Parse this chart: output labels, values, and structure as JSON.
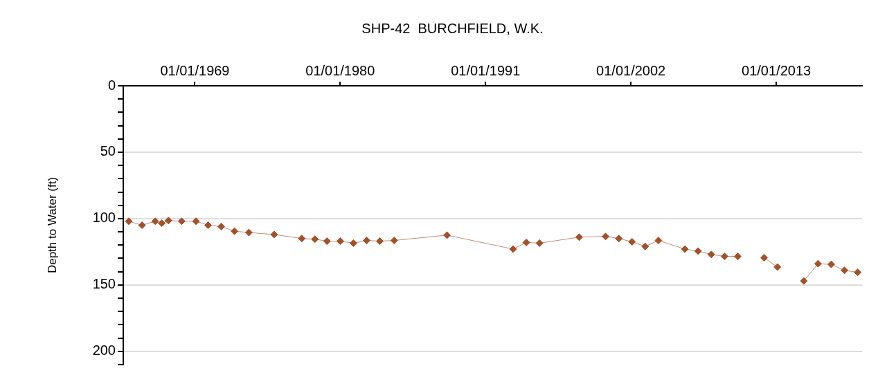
{
  "chart_data": {
    "type": "line",
    "title": "SHP-42  BURCHFIELD, W.K.",
    "ylabel": "Depth to Water (ft)",
    "xlim": [
      "1963-08",
      "2019-07"
    ],
    "xticks": [
      {
        "value": "1969-01-01",
        "label": "01/01/1969"
      },
      {
        "value": "1980-01-01",
        "label": "01/01/1980"
      },
      {
        "value": "1991-01-01",
        "label": "01/01/1991"
      },
      {
        "value": "2002-01-01",
        "label": "01/01/2002"
      },
      {
        "value": "2013-01-01",
        "label": "01/01/2013"
      }
    ],
    "ylim": [
      210,
      0
    ],
    "yticks": [
      0,
      {
        "value": 10,
        "label": null
      },
      {
        "value": 20,
        "label": null
      },
      {
        "value": 30,
        "label": null
      },
      {
        "value": 40,
        "label": null
      },
      50,
      {
        "value": 60,
        "label": null
      },
      {
        "value": 70,
        "label": null
      },
      {
        "value": 80,
        "label": null
      },
      {
        "value": 90,
        "label": null
      },
      100,
      {
        "value": 110,
        "label": null
      },
      {
        "value": 120,
        "label": null
      },
      {
        "value": 130,
        "label": null
      },
      {
        "value": 140,
        "label": null
      },
      150,
      {
        "value": 160,
        "label": null
      },
      {
        "value": 170,
        "label": null
      },
      {
        "value": 180,
        "label": null
      },
      {
        "value": 190,
        "label": null
      },
      200,
      {
        "value": 210,
        "label": null
      }
    ],
    "grid": "y",
    "marker": "diamond",
    "line_style": "solid",
    "legend": false,
    "series": [
      {
        "color": "#a0522d",
        "x": [
          "1964-01",
          "1965-01",
          "1966-01",
          "1966-07",
          "1967-01",
          "1968-01",
          "1969-02",
          "1970-01",
          "1971-01",
          "1972-01",
          "1973-02",
          "1975-01",
          "1977-02",
          "1978-02",
          "1979-01",
          "1980-01",
          "1981-01",
          "1982-01",
          "1983-01",
          "1984-02",
          "1988-02",
          "1993-02",
          "1994-02",
          "1995-02",
          "1998-02",
          "2000-02",
          "2001-02",
          "2002-02",
          "2003-02",
          "2004-02",
          "2006-02",
          "2007-02",
          "2008-02",
          "2009-02",
          "2010-02",
          "2011-01",
          "2012-02",
          "2013-02",
          "2014-01",
          "2015-02",
          "2016-03",
          "2017-03",
          "2018-03",
          "2019-03"
        ],
        "values": [
          102,
          105,
          102,
          103.5,
          101.5,
          102,
          102,
          105,
          106,
          109.5,
          110.5,
          112,
          115,
          115.5,
          117,
          117,
          118.5,
          116.5,
          117,
          116.5,
          112.5,
          123,
          118,
          118.5,
          114,
          113.5,
          115,
          117.5,
          121,
          116.5,
          123,
          124.5,
          127,
          128.5,
          128.5,
          null,
          129.5,
          136.5,
          null,
          147,
          134,
          134.5,
          139,
          140.5
        ]
      }
    ]
  }
}
